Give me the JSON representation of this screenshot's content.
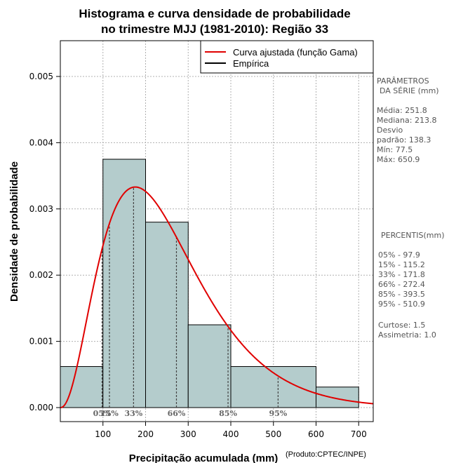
{
  "chart_data": {
    "type": "bar",
    "title_lines": [
      "Histograma e curva densidade de probabilidade",
      "no trimestre MJJ (1981-2010): Região 33"
    ],
    "xlabel": "Precipitação acumulada (mm)",
    "ylabel": "Densidade de probabilidade",
    "credit": "(Produto:CPTEC/INPE)",
    "xlim": [
      0,
      725
    ],
    "ylim": [
      0,
      0.0055
    ],
    "x_ticks": [
      100,
      200,
      300,
      400,
      500,
      600,
      700
    ],
    "x_tick_labels": [
      "100",
      "200",
      "300",
      "400",
      "500",
      "600",
      "700"
    ],
    "y_ticks": [
      0,
      0.001,
      0.002,
      0.003,
      0.004,
      0.005
    ],
    "y_tick_labels": [
      "0.000",
      "0.001",
      "0.002",
      "0.003",
      "0.004",
      "0.005"
    ],
    "grid": true,
    "bins": [
      {
        "start": 0,
        "end": 100,
        "density": 0.00062
      },
      {
        "start": 100,
        "end": 200,
        "density": 0.00375
      },
      {
        "start": 200,
        "end": 300,
        "density": 0.0028
      },
      {
        "start": 300,
        "end": 400,
        "density": 0.00125
      },
      {
        "start": 400,
        "end": 600,
        "density": 0.00062
      },
      {
        "start": 600,
        "end": 700,
        "density": 0.00031
      }
    ],
    "fitted_curve": {
      "name": "Curva ajustada (função Gama)",
      "distribution": "gamma",
      "mean": 251.8,
      "sd": 138.3,
      "color": "#e00000"
    },
    "legend": {
      "position": "top-right",
      "entries": [
        {
          "label": "Curva ajustada (função Gama)",
          "color": "#e00000"
        },
        {
          "label": "Empírica",
          "color": "#000000"
        }
      ]
    },
    "percentile_markers": [
      {
        "label": "05%",
        "value": 97.9
      },
      {
        "label": "15%",
        "value": 115.2
      },
      {
        "label": "33%",
        "value": 171.8
      },
      {
        "label": "66%",
        "value": 272.4
      },
      {
        "label": "85%",
        "value": 393.5
      },
      {
        "label": "95%",
        "value": 510.9
      }
    ],
    "bar_color": "#b4cccc"
  },
  "side_panel": {
    "params_heading_1": "PARÂMETROS",
    "params_heading_2": "DA SÉRIE (mm)",
    "media": "Média:  251.8",
    "mediana": "Mediana:  213.8",
    "desvio": "Desvio",
    "padrao": "padrão:  138.3",
    "min": "Mín:  77.5",
    "max": "Máx:  650.9",
    "percentis_heading": "PERCENTIS(mm)",
    "p05": "05% -  97.9",
    "p15": "15% -  115.2",
    "p33": "33% -  171.8",
    "p66": "66% -  272.4",
    "p85": "85% -  393.5",
    "p95": "95% -  510.9",
    "curtose": "Curtose:  1.5",
    "assimetria": "Assimetria:  1.0"
  }
}
